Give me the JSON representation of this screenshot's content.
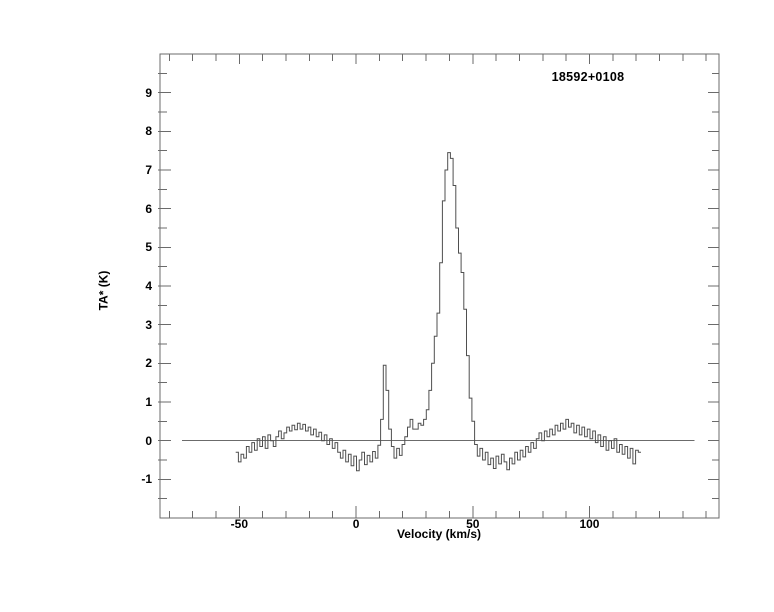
{
  "figure": {
    "source_label": "18592+0108",
    "xlabel": "Velocity (km/s)",
    "ylabel": "TA* (K)"
  },
  "colors": {
    "background": "#ffffff",
    "axis": "#6b6b6b",
    "spectrum_line": "#4f4f4f",
    "text": "#000000"
  },
  "chart_data": {
    "type": "line",
    "style": "histogram-step-spectrum",
    "title": "18592+0108",
    "xlabel": "Velocity (km/s)",
    "ylabel": "TA* (K)",
    "xlim": [
      -84,
      155.5
    ],
    "ylim": [
      -2,
      10
    ],
    "grid": false,
    "legend": "none",
    "x_ticks": {
      "minor_from": -80,
      "minor_to": 150,
      "minor_step": 10,
      "major": [
        -50,
        0,
        50,
        100
      ],
      "major_labels": [
        "-50",
        "0",
        "50",
        "100"
      ]
    },
    "y_ticks": {
      "minor_from": -1.5,
      "minor_to": 9.5,
      "minor_step": 0.5,
      "major": [
        -1,
        0,
        1,
        2,
        3,
        4,
        5,
        6,
        7,
        8,
        9
      ],
      "major_labels": [
        "-1",
        "0",
        "1",
        "2",
        "3",
        "4",
        "5",
        "6",
        "7",
        "8",
        "9"
      ]
    },
    "zero_line": {
      "y": 0,
      "x_start": -74.5,
      "x_end": 145
    },
    "peaks": [
      {
        "name": "main-peak",
        "velocity": 39.8,
        "ta_k": 7.45
      },
      {
        "name": "narrow-spike",
        "velocity": 12.3,
        "ta_k": 1.95
      }
    ],
    "velocity_start": -51,
    "velocity_step": 1.15,
    "intensity": [
      -0.3,
      -0.55,
      -0.35,
      -0.45,
      -0.15,
      -0.3,
      -0.05,
      -0.25,
      0.05,
      -0.15,
      0.1,
      -0.2,
      0.15,
      0.0,
      -0.15,
      0.1,
      0.25,
      0.05,
      0.2,
      0.35,
      0.25,
      0.4,
      0.28,
      0.45,
      0.3,
      0.42,
      0.25,
      0.35,
      0.15,
      0.3,
      0.1,
      0.22,
      0.0,
      0.15,
      -0.1,
      0.05,
      -0.2,
      -0.05,
      -0.3,
      -0.45,
      -0.25,
      -0.55,
      -0.35,
      -0.65,
      -0.4,
      -0.78,
      -0.5,
      -0.3,
      -0.62,
      -0.38,
      -0.55,
      -0.28,
      -0.45,
      -0.12,
      0.55,
      1.95,
      1.3,
      0.3,
      -0.15,
      -0.45,
      -0.2,
      -0.38,
      -0.1,
      0.1,
      0.35,
      0.55,
      0.3,
      0.3,
      0.45,
      0.4,
      0.55,
      0.8,
      1.3,
      2.0,
      2.7,
      3.3,
      4.6,
      6.2,
      7.0,
      7.45,
      7.3,
      6.6,
      5.5,
      4.85,
      4.35,
      3.4,
      2.2,
      1.1,
      0.5,
      -0.1,
      -0.4,
      -0.2,
      -0.5,
      -0.3,
      -0.62,
      -0.45,
      -0.72,
      -0.4,
      -0.6,
      -0.35,
      -0.55,
      -0.75,
      -0.45,
      -0.6,
      -0.3,
      -0.5,
      -0.25,
      -0.42,
      -0.15,
      -0.3,
      -0.05,
      -0.2,
      0.05,
      0.2,
      0.0,
      0.25,
      0.1,
      0.3,
      0.15,
      0.4,
      0.25,
      0.45,
      0.3,
      0.55,
      0.35,
      0.45,
      0.2,
      0.4,
      0.15,
      0.35,
      0.1,
      0.3,
      0.05,
      0.25,
      -0.05,
      0.15,
      -0.15,
      0.1,
      -0.25,
      0.0,
      -0.2,
      0.05,
      -0.3,
      -0.1,
      -0.35,
      -0.15,
      -0.45,
      -0.2,
      -0.6,
      -0.25,
      -0.3
    ]
  }
}
